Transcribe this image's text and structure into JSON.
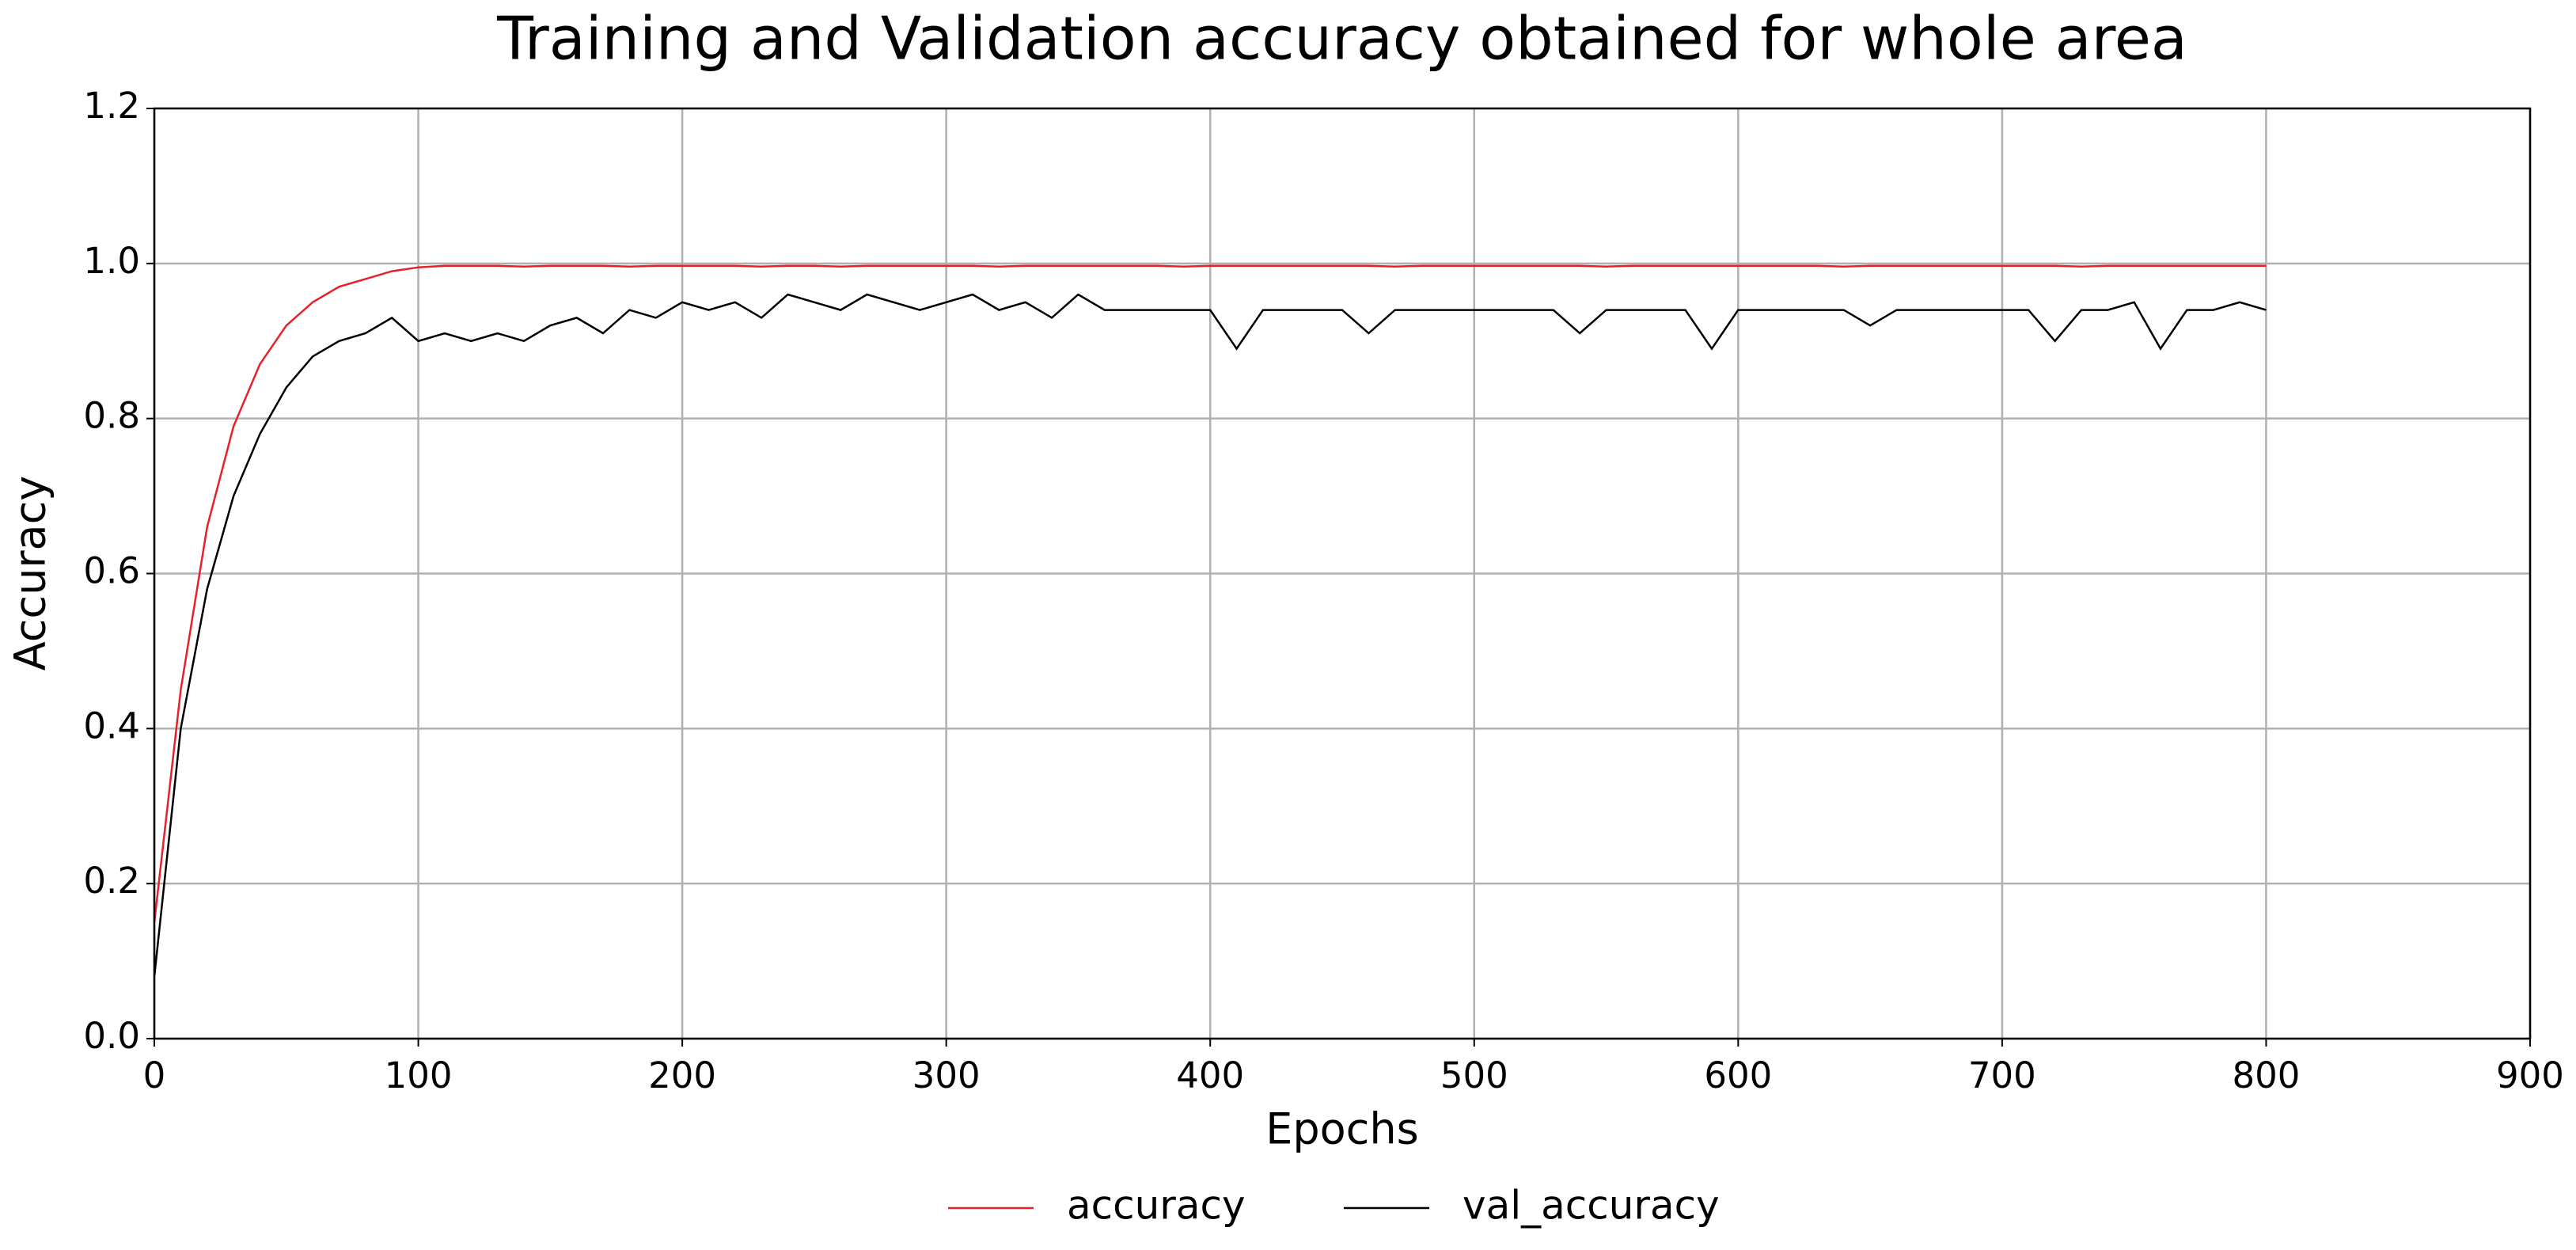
{
  "chart_data": {
    "type": "line",
    "title": "Training and Validation accuracy obtained for whole area",
    "xlabel": "Epochs",
    "ylabel": "Accuracy",
    "x": [
      0,
      10,
      20,
      30,
      40,
      50,
      60,
      70,
      80,
      90,
      100,
      110,
      120,
      130,
      140,
      150,
      160,
      170,
      180,
      190,
      200,
      210,
      220,
      230,
      240,
      250,
      260,
      270,
      280,
      290,
      300,
      310,
      320,
      330,
      340,
      350,
      360,
      370,
      380,
      390,
      400,
      410,
      420,
      430,
      440,
      450,
      460,
      470,
      480,
      490,
      500,
      510,
      520,
      530,
      540,
      550,
      560,
      570,
      580,
      590,
      600,
      610,
      620,
      630,
      640,
      650,
      660,
      670,
      680,
      690,
      700,
      710,
      720,
      730,
      740,
      750,
      760,
      770,
      780,
      790,
      800
    ],
    "series": [
      {
        "name": "accuracy",
        "color": "#e8202a",
        "values": [
          0.15,
          0.45,
          0.66,
          0.79,
          0.87,
          0.92,
          0.95,
          0.97,
          0.98,
          0.99,
          0.995,
          0.997,
          0.997,
          0.997,
          0.996,
          0.997,
          0.997,
          0.997,
          0.996,
          0.997,
          0.997,
          0.997,
          0.997,
          0.996,
          0.997,
          0.997,
          0.996,
          0.997,
          0.997,
          0.997,
          0.997,
          0.997,
          0.996,
          0.997,
          0.997,
          0.997,
          0.997,
          0.997,
          0.997,
          0.996,
          0.997,
          0.997,
          0.997,
          0.997,
          0.997,
          0.997,
          0.997,
          0.996,
          0.997,
          0.997,
          0.997,
          0.997,
          0.997,
          0.997,
          0.997,
          0.996,
          0.997,
          0.997,
          0.997,
          0.997,
          0.997,
          0.997,
          0.997,
          0.997,
          0.996,
          0.997,
          0.997,
          0.997,
          0.997,
          0.997,
          0.997,
          0.997,
          0.997,
          0.996,
          0.997,
          0.997,
          0.997,
          0.997,
          0.997,
          0.997,
          0.997
        ]
      },
      {
        "name": "val_accuracy",
        "color": "#000000",
        "values": [
          0.08,
          0.4,
          0.58,
          0.7,
          0.78,
          0.84,
          0.88,
          0.9,
          0.91,
          0.93,
          0.9,
          0.91,
          0.9,
          0.91,
          0.9,
          0.92,
          0.93,
          0.91,
          0.94,
          0.93,
          0.95,
          0.94,
          0.95,
          0.93,
          0.96,
          0.95,
          0.94,
          0.96,
          0.95,
          0.94,
          0.95,
          0.96,
          0.94,
          0.95,
          0.93,
          0.96,
          0.94,
          0.94,
          0.94,
          0.94,
          0.94,
          0.89,
          0.94,
          0.94,
          0.94,
          0.94,
          0.91,
          0.94,
          0.94,
          0.94,
          0.94,
          0.94,
          0.94,
          0.94,
          0.91,
          0.94,
          0.94,
          0.94,
          0.94,
          0.89,
          0.94,
          0.94,
          0.94,
          0.94,
          0.94,
          0.92,
          0.94,
          0.94,
          0.94,
          0.94,
          0.94,
          0.94,
          0.9,
          0.94,
          0.94,
          0.95,
          0.89,
          0.94,
          0.94,
          0.95,
          0.94
        ]
      }
    ],
    "xlim": [
      0,
      900
    ],
    "xticks": [
      0,
      100,
      200,
      300,
      400,
      500,
      600,
      700,
      800,
      900
    ],
    "ylim": [
      0,
      1.2
    ],
    "yticks": [
      {
        "value": 0,
        "label": "0.0"
      },
      0.2,
      0.4,
      0.6,
      0.8,
      {
        "value": 1,
        "label": "1.0"
      },
      1.2
    ],
    "grid": true,
    "legend": "bottom"
  }
}
